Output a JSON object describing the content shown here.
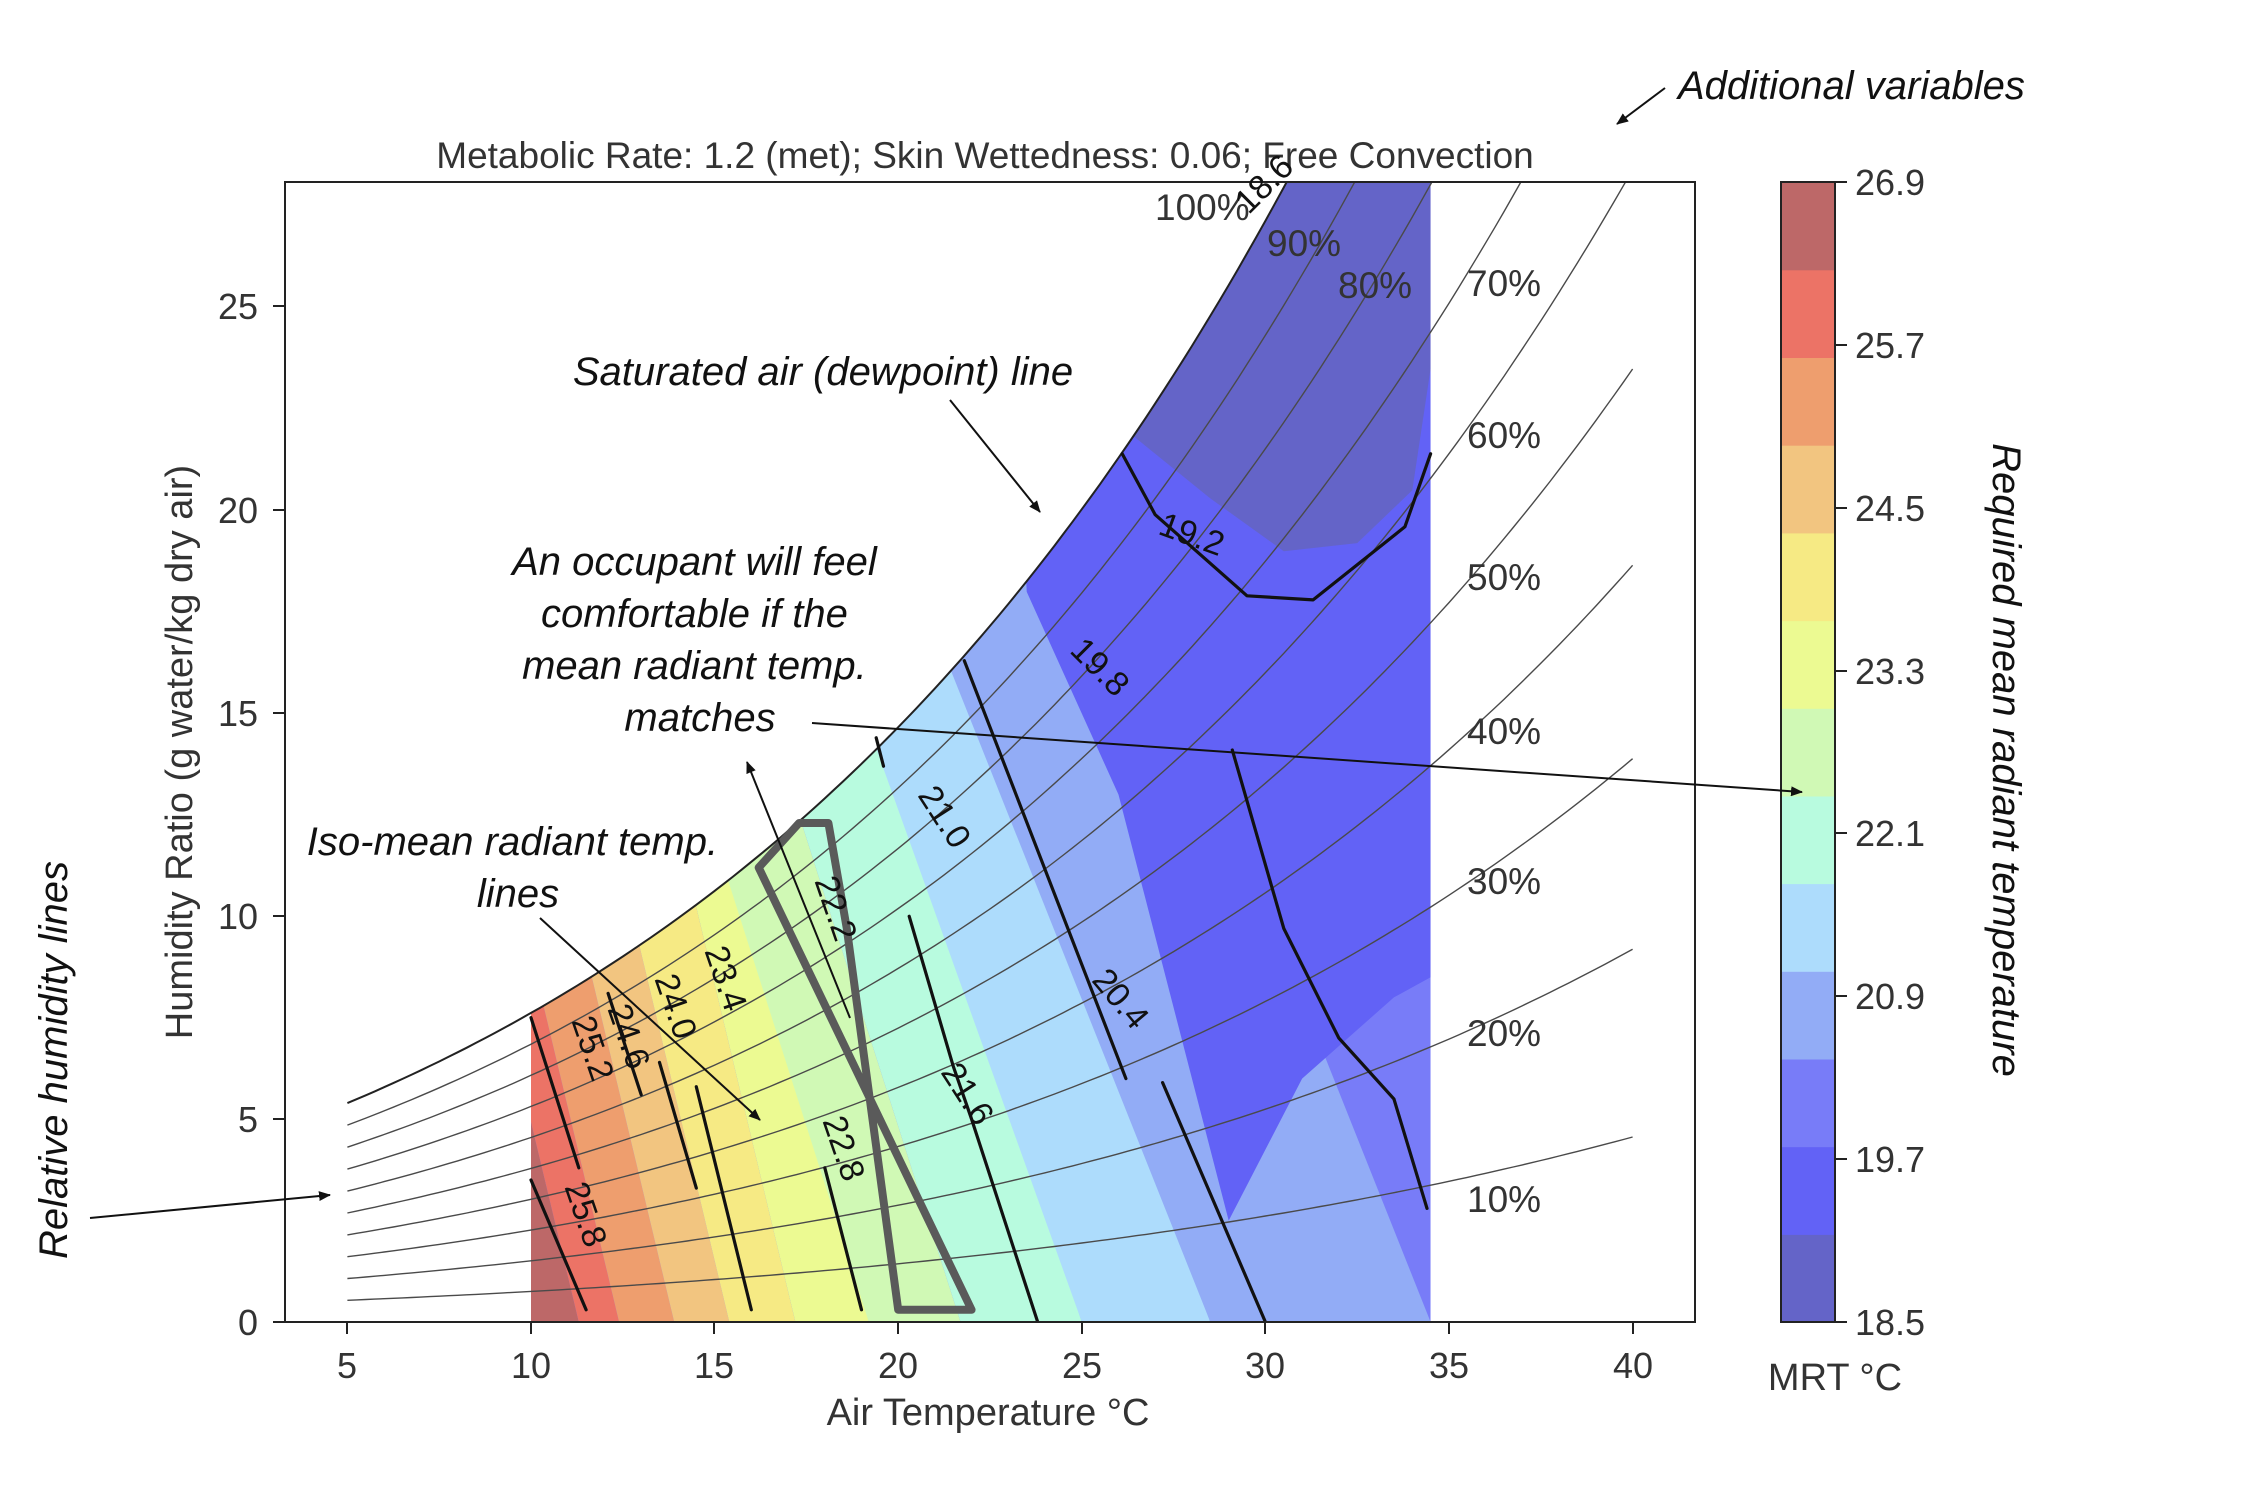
{
  "chart_data": {
    "type": "psychrometric-contour",
    "title": "Metabolic Rate: 1.2 (met); Skin Wettedness: 0.06; Free Convection",
    "xlabel": "Air Temperature °C",
    "ylabel": "Humidity Ratio (g water/kg dry air)",
    "xlim": [
      3.3,
      41.7
    ],
    "ylim": [
      0,
      28.1
    ],
    "x_ticks": [
      "5",
      "10",
      "15",
      "20",
      "25",
      "30",
      "35",
      "40"
    ],
    "y_ticks": [
      "0",
      "5",
      "10",
      "15",
      "20",
      "25"
    ],
    "grid": false,
    "relative_humidity_lines": [
      {
        "rh": 10,
        "label": "10%"
      },
      {
        "rh": 20,
        "label": "20%"
      },
      {
        "rh": 30,
        "label": "30%"
      },
      {
        "rh": 40,
        "label": "40%"
      },
      {
        "rh": 50,
        "label": "50%"
      },
      {
        "rh": 60,
        "label": "60%"
      },
      {
        "rh": 70,
        "label": "70%"
      },
      {
        "rh": 80,
        "label": "80%"
      },
      {
        "rh": 90,
        "label": "90%"
      },
      {
        "rh": 100,
        "label": "100%"
      }
    ],
    "data_region": {
      "air_temp_min": 10,
      "air_temp_max": 34.5
    },
    "iso_mrt_lines": [
      {
        "label": "25.8",
        "points": [
          [
            10,
            3.5
          ],
          [
            11.5,
            0.3
          ]
        ]
      },
      {
        "label": "25.2",
        "points": [
          [
            10,
            7.5
          ],
          [
            11.3,
            3.8
          ]
        ]
      },
      {
        "label": "24.6",
        "points": [
          [
            12.1,
            8.1
          ],
          [
            13,
            5.6
          ]
        ]
      },
      {
        "label": "24.0",
        "points": [
          [
            13.5,
            6.4
          ],
          [
            14.5,
            3.3
          ]
        ]
      },
      {
        "label": "23.4",
        "points": [
          [
            14.5,
            5.8
          ],
          [
            16,
            0.3
          ]
        ]
      },
      {
        "label": "22.8",
        "points": [
          [
            18,
            3.8
          ],
          [
            19,
            0.3
          ]
        ]
      },
      {
        "label": "22.2",
        "points": [
          [
            16.2,
            11.2
          ],
          [
            17.3,
            12.3
          ],
          [
            18.1,
            12.3
          ],
          [
            18.6,
            9.7
          ],
          [
            20,
            0.3
          ],
          [
            22,
            0.3
          ]
        ]
      },
      {
        "label": "21.6",
        "points": [
          [
            20.3,
            10
          ],
          [
            21.5,
            6.3
          ],
          [
            22,
            5
          ],
          [
            23.8,
            0
          ]
        ]
      },
      {
        "label": "21.0",
        "points": [
          [
            19.4,
            14.4
          ],
          [
            19.6,
            13.7
          ]
        ]
      },
      {
        "label": "19.8",
        "points": [
          [
            21.8,
            16.3
          ],
          [
            26.2,
            6
          ]
        ]
      },
      {
        "label": "20.4",
        "points": [
          [
            27.2,
            5.9
          ],
          [
            30,
            0
          ]
        ]
      },
      {
        "label": "19.2",
        "points": [
          [
            26.1,
            21.4
          ],
          [
            27,
            19.9
          ],
          [
            29.5,
            17.9
          ],
          [
            31.3,
            17.8
          ],
          [
            33.8,
            19.6
          ],
          [
            34.5,
            21.4
          ]
        ]
      },
      {
        "label": "18.6",
        "points": [
          [
            29.1,
            14.1
          ],
          [
            30.5,
            9.7
          ],
          [
            32,
            7
          ],
          [
            33.5,
            5.5
          ],
          [
            34.4,
            2.8
          ]
        ]
      }
    ],
    "colorbar": {
      "label": "MRT °C",
      "ticks": [
        "18.5",
        "19.7",
        "20.9",
        "22.1",
        "23.3",
        "24.5",
        "25.7",
        "26.9"
      ],
      "range": [
        18.5,
        26.9
      ],
      "colors": [
        "#6464c8",
        "#6262f6",
        "#787cf8",
        "#92acf6",
        "#addcfc",
        "#b8fbdf",
        "#d0f9b5",
        "#ecfa92",
        "#f6ea84",
        "#f2c580",
        "#ee9e6e",
        "#ec7366",
        "#bd6868"
      ]
    },
    "annotations": [
      {
        "text": "Additional variables"
      },
      {
        "text": "Saturated air (dewpoint) line"
      },
      {
        "text": "An occupant will feel comfortable if the mean radiant temp. matches"
      },
      {
        "text": "Iso-mean radiant temp. lines"
      },
      {
        "text": "Relative humidity lines"
      },
      {
        "text": "Required mean radiant temperature"
      }
    ]
  }
}
